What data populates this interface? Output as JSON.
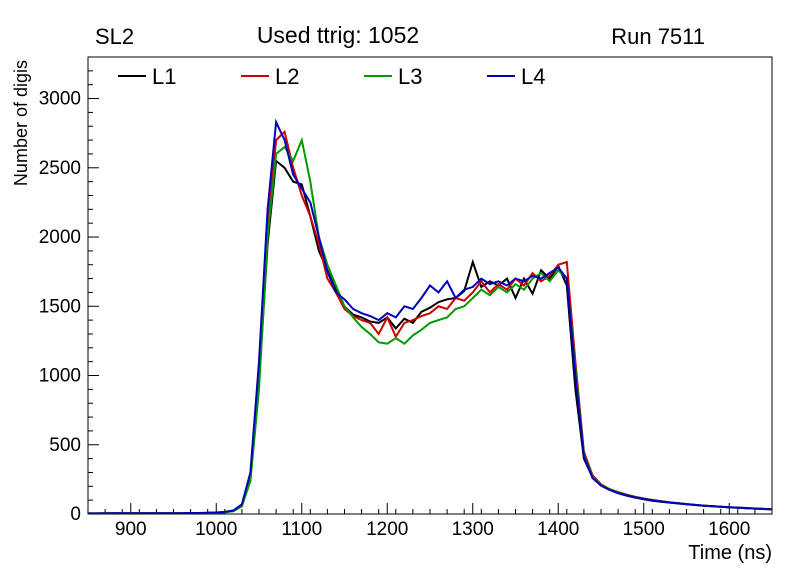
{
  "header": {
    "pad_label": "SL2",
    "title": "Used ttrig: 1052",
    "run_label": "Run 7511"
  },
  "chart_data": {
    "type": "line",
    "title": "Used ttrig: 1052",
    "xlabel": "Time (ns)",
    "ylabel": "Number of digis",
    "xlim": [
      850,
      1650
    ],
    "ylim": [
      0,
      3300
    ],
    "x_major_ticks": [
      900,
      1000,
      1100,
      1200,
      1300,
      1400,
      1500,
      1600
    ],
    "x_minor_step": 20,
    "y_major_ticks": [
      0,
      500,
      1000,
      1500,
      2000,
      2500,
      3000
    ],
    "y_minor_step": 100,
    "grid": false,
    "legend_position": "top-inside",
    "x": [
      850,
      860,
      870,
      880,
      890,
      900,
      910,
      920,
      930,
      940,
      950,
      960,
      970,
      980,
      990,
      1000,
      1010,
      1020,
      1030,
      1040,
      1050,
      1060,
      1070,
      1080,
      1090,
      1100,
      1110,
      1120,
      1130,
      1140,
      1150,
      1160,
      1170,
      1180,
      1190,
      1200,
      1210,
      1220,
      1230,
      1240,
      1250,
      1260,
      1270,
      1280,
      1290,
      1300,
      1310,
      1320,
      1330,
      1340,
      1350,
      1360,
      1370,
      1380,
      1390,
      1400,
      1410,
      1420,
      1430,
      1440,
      1450,
      1460,
      1470,
      1480,
      1490,
      1500,
      1510,
      1520,
      1530,
      1540,
      1550,
      1560,
      1570,
      1580,
      1590,
      1600,
      1610,
      1620,
      1630,
      1640,
      1650
    ],
    "series": [
      {
        "name": "L1",
        "color": "#000000",
        "values": [
          4,
          4,
          5,
          4,
          5,
          5,
          4,
          6,
          5,
          6,
          6,
          5,
          7,
          6,
          8,
          10,
          14,
          22,
          60,
          260,
          950,
          1950,
          2550,
          2500,
          2400,
          2380,
          2150,
          1900,
          1760,
          1620,
          1500,
          1440,
          1420,
          1390,
          1380,
          1420,
          1340,
          1410,
          1380,
          1460,
          1490,
          1530,
          1550,
          1560,
          1610,
          1820,
          1640,
          1680,
          1650,
          1700,
          1560,
          1700,
          1590,
          1760,
          1700,
          1790,
          1650,
          900,
          400,
          265,
          205,
          175,
          150,
          132,
          118,
          106,
          96,
          88,
          82,
          76,
          70,
          65,
          60,
          56,
          52,
          48,
          45,
          42,
          39,
          36,
          33
        ]
      },
      {
        "name": "L2",
        "color": "#cc0000",
        "values": [
          3,
          4,
          4,
          5,
          4,
          5,
          5,
          5,
          6,
          5,
          6,
          6,
          6,
          7,
          8,
          10,
          14,
          24,
          65,
          270,
          1000,
          2050,
          2700,
          2760,
          2500,
          2300,
          2150,
          1950,
          1700,
          1600,
          1480,
          1430,
          1400,
          1380,
          1300,
          1420,
          1280,
          1380,
          1400,
          1430,
          1450,
          1500,
          1480,
          1560,
          1540,
          1600,
          1680,
          1600,
          1660,
          1620,
          1700,
          1650,
          1740,
          1680,
          1720,
          1800,
          1820,
          1100,
          450,
          280,
          215,
          180,
          158,
          140,
          125,
          112,
          102,
          93,
          85,
          78,
          72,
          66,
          61,
          56,
          52,
          48,
          45,
          42,
          39,
          36,
          33
        ]
      },
      {
        "name": "L3",
        "color": "#009900",
        "values": [
          4,
          3,
          4,
          4,
          5,
          4,
          5,
          5,
          5,
          6,
          5,
          6,
          6,
          7,
          8,
          9,
          13,
          20,
          55,
          240,
          900,
          2000,
          2600,
          2650,
          2550,
          2700,
          2400,
          2000,
          1800,
          1650,
          1500,
          1420,
          1350,
          1300,
          1240,
          1230,
          1270,
          1230,
          1290,
          1330,
          1380,
          1400,
          1420,
          1480,
          1500,
          1560,
          1620,
          1580,
          1640,
          1600,
          1660,
          1620,
          1700,
          1740,
          1680,
          1760,
          1700,
          1050,
          430,
          270,
          210,
          180,
          155,
          138,
          122,
          110,
          100,
          92,
          84,
          78,
          72,
          66,
          61,
          57,
          53,
          49,
          46,
          43,
          40,
          37,
          34
        ]
      },
      {
        "name": "L4",
        "color": "#0000bb",
        "values": [
          4,
          4,
          4,
          5,
          5,
          5,
          6,
          5,
          6,
          6,
          6,
          6,
          7,
          7,
          9,
          11,
          15,
          25,
          70,
          300,
          1100,
          2200,
          2830,
          2700,
          2450,
          2350,
          2250,
          2000,
          1750,
          1600,
          1550,
          1480,
          1450,
          1430,
          1400,
          1450,
          1420,
          1500,
          1480,
          1560,
          1650,
          1600,
          1680,
          1560,
          1620,
          1640,
          1700,
          1660,
          1680,
          1650,
          1700,
          1680,
          1720,
          1700,
          1740,
          1780,
          1700,
          1000,
          420,
          260,
          205,
          175,
          152,
          135,
          120,
          108,
          98,
          90,
          83,
          77,
          71,
          66,
          61,
          57,
          53,
          49,
          46,
          43,
          40,
          37,
          34
        ]
      }
    ]
  }
}
